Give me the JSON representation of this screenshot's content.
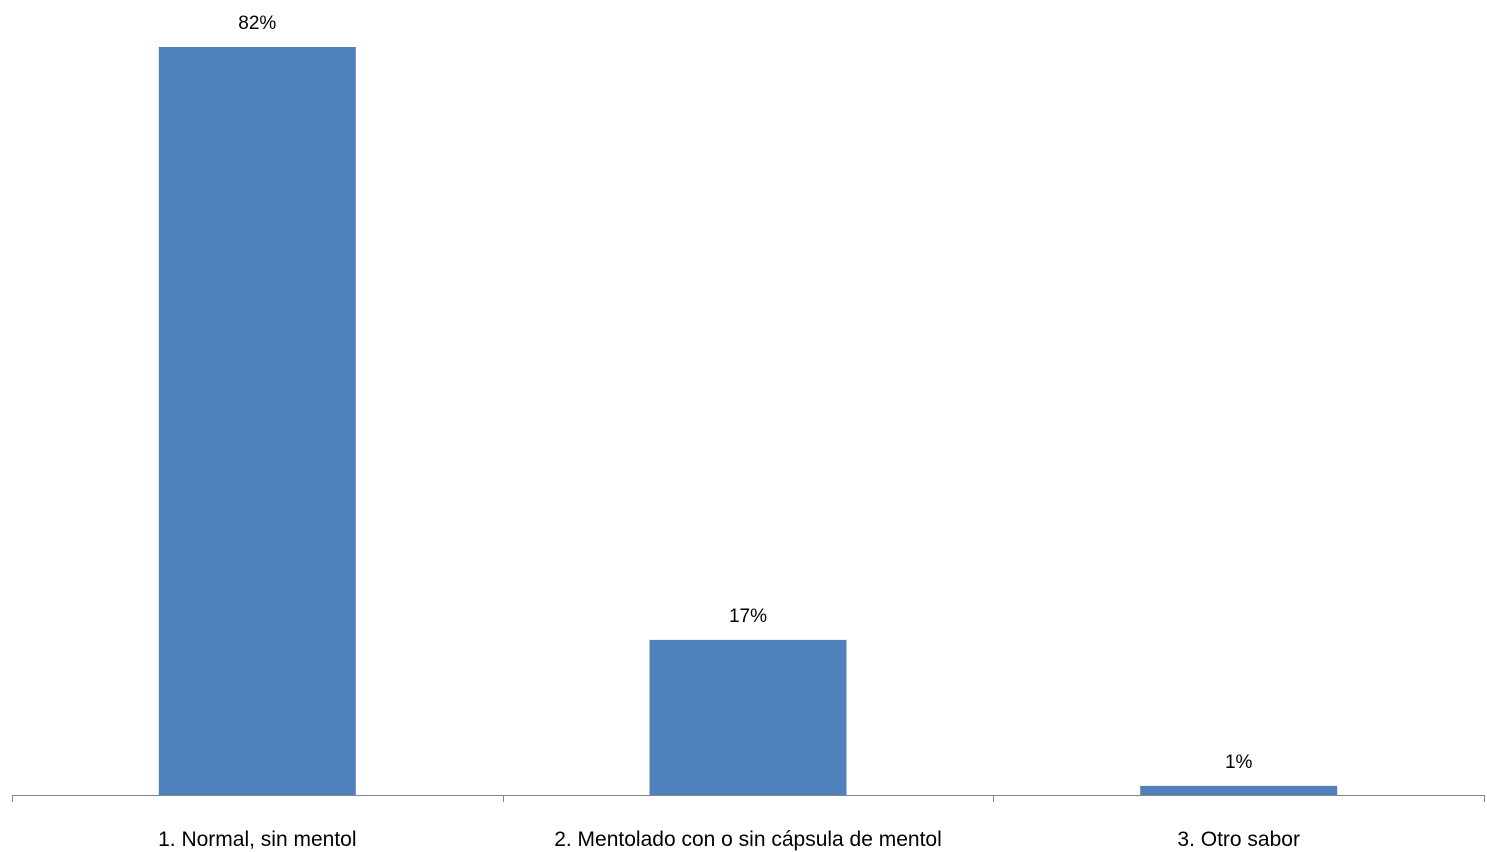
{
  "chart_data": {
    "type": "bar",
    "categories": [
      "1. Normal, sin mentol",
      "2. Mentolado con o sin cápsula de mentol",
      "3. Otro sabor"
    ],
    "values": [
      82,
      17,
      1
    ],
    "data_labels": [
      "82%",
      "17%",
      "1%"
    ],
    "unit": "%",
    "title": "",
    "xlabel": "",
    "ylabel": "",
    "ylim": [
      0,
      82
    ],
    "grid": false,
    "legend": "none",
    "bar_color": "#4F81BD",
    "axis_color": "#868686"
  }
}
